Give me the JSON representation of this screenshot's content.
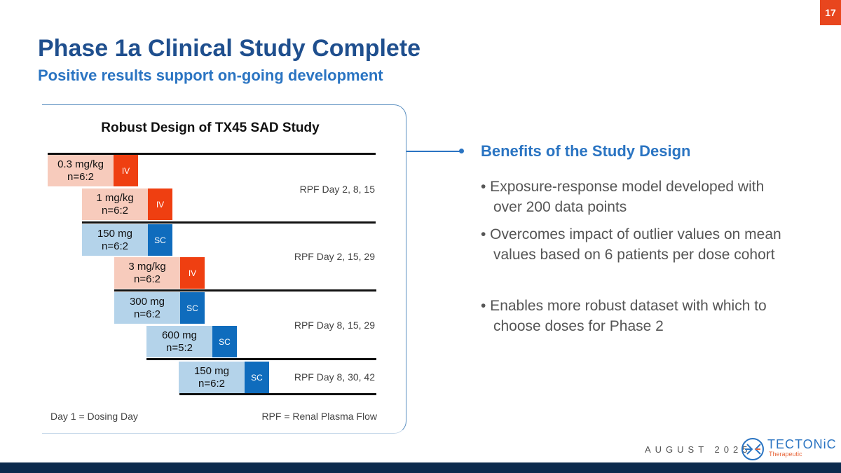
{
  "page_number": "17",
  "title": "Phase 1a Clinical Study Complete",
  "subtitle": "Positive results support on-going development",
  "diagram": {
    "title": "Robust Design of TX45 SAD Study",
    "cohorts": [
      {
        "dose": "0.3 mg/kg",
        "n": "n=6:2",
        "route": "IV"
      },
      {
        "dose": "1 mg/kg",
        "n": "n=6:2",
        "route": "IV"
      },
      {
        "dose": "150 mg",
        "n": "n=6:2",
        "route": "SC"
      },
      {
        "dose": "3 mg/kg",
        "n": "n=6:2",
        "route": "IV"
      },
      {
        "dose": "300 mg",
        "n": "n=6:2",
        "route": "SC"
      },
      {
        "dose": "600 mg",
        "n": "n=5:2",
        "route": "SC"
      },
      {
        "dose": "150 mg",
        "n": "n=6:2",
        "route": "SC"
      }
    ],
    "rpf_labels": [
      "RPF Day 2, 8, 15",
      "RPF Day 2, 15, 29",
      "RPF Day 8, 15, 29",
      "RPF Day 8, 30, 42"
    ],
    "note_left": "Day 1 = Dosing Day",
    "note_right": "RPF = Renal Plasma Flow",
    "colors": {
      "iv": "#ef3f11",
      "iv_light": "#f7cbbc",
      "sc": "#0f6cbd",
      "sc_light": "#b4d3ea"
    }
  },
  "benefits": {
    "title": "Benefits of the Study Design",
    "items": [
      "• Exposure-response model developed with over 200 data points",
      "• Overcomes impact of outlier values on mean values based on 6 patients per dose cohort",
      "• Enables more robust dataset with which to choose doses for Phase 2"
    ]
  },
  "footer": {
    "date": "AUGUST 2025",
    "logo_name": "TECTONiC",
    "logo_sub": "Therapeutic"
  }
}
